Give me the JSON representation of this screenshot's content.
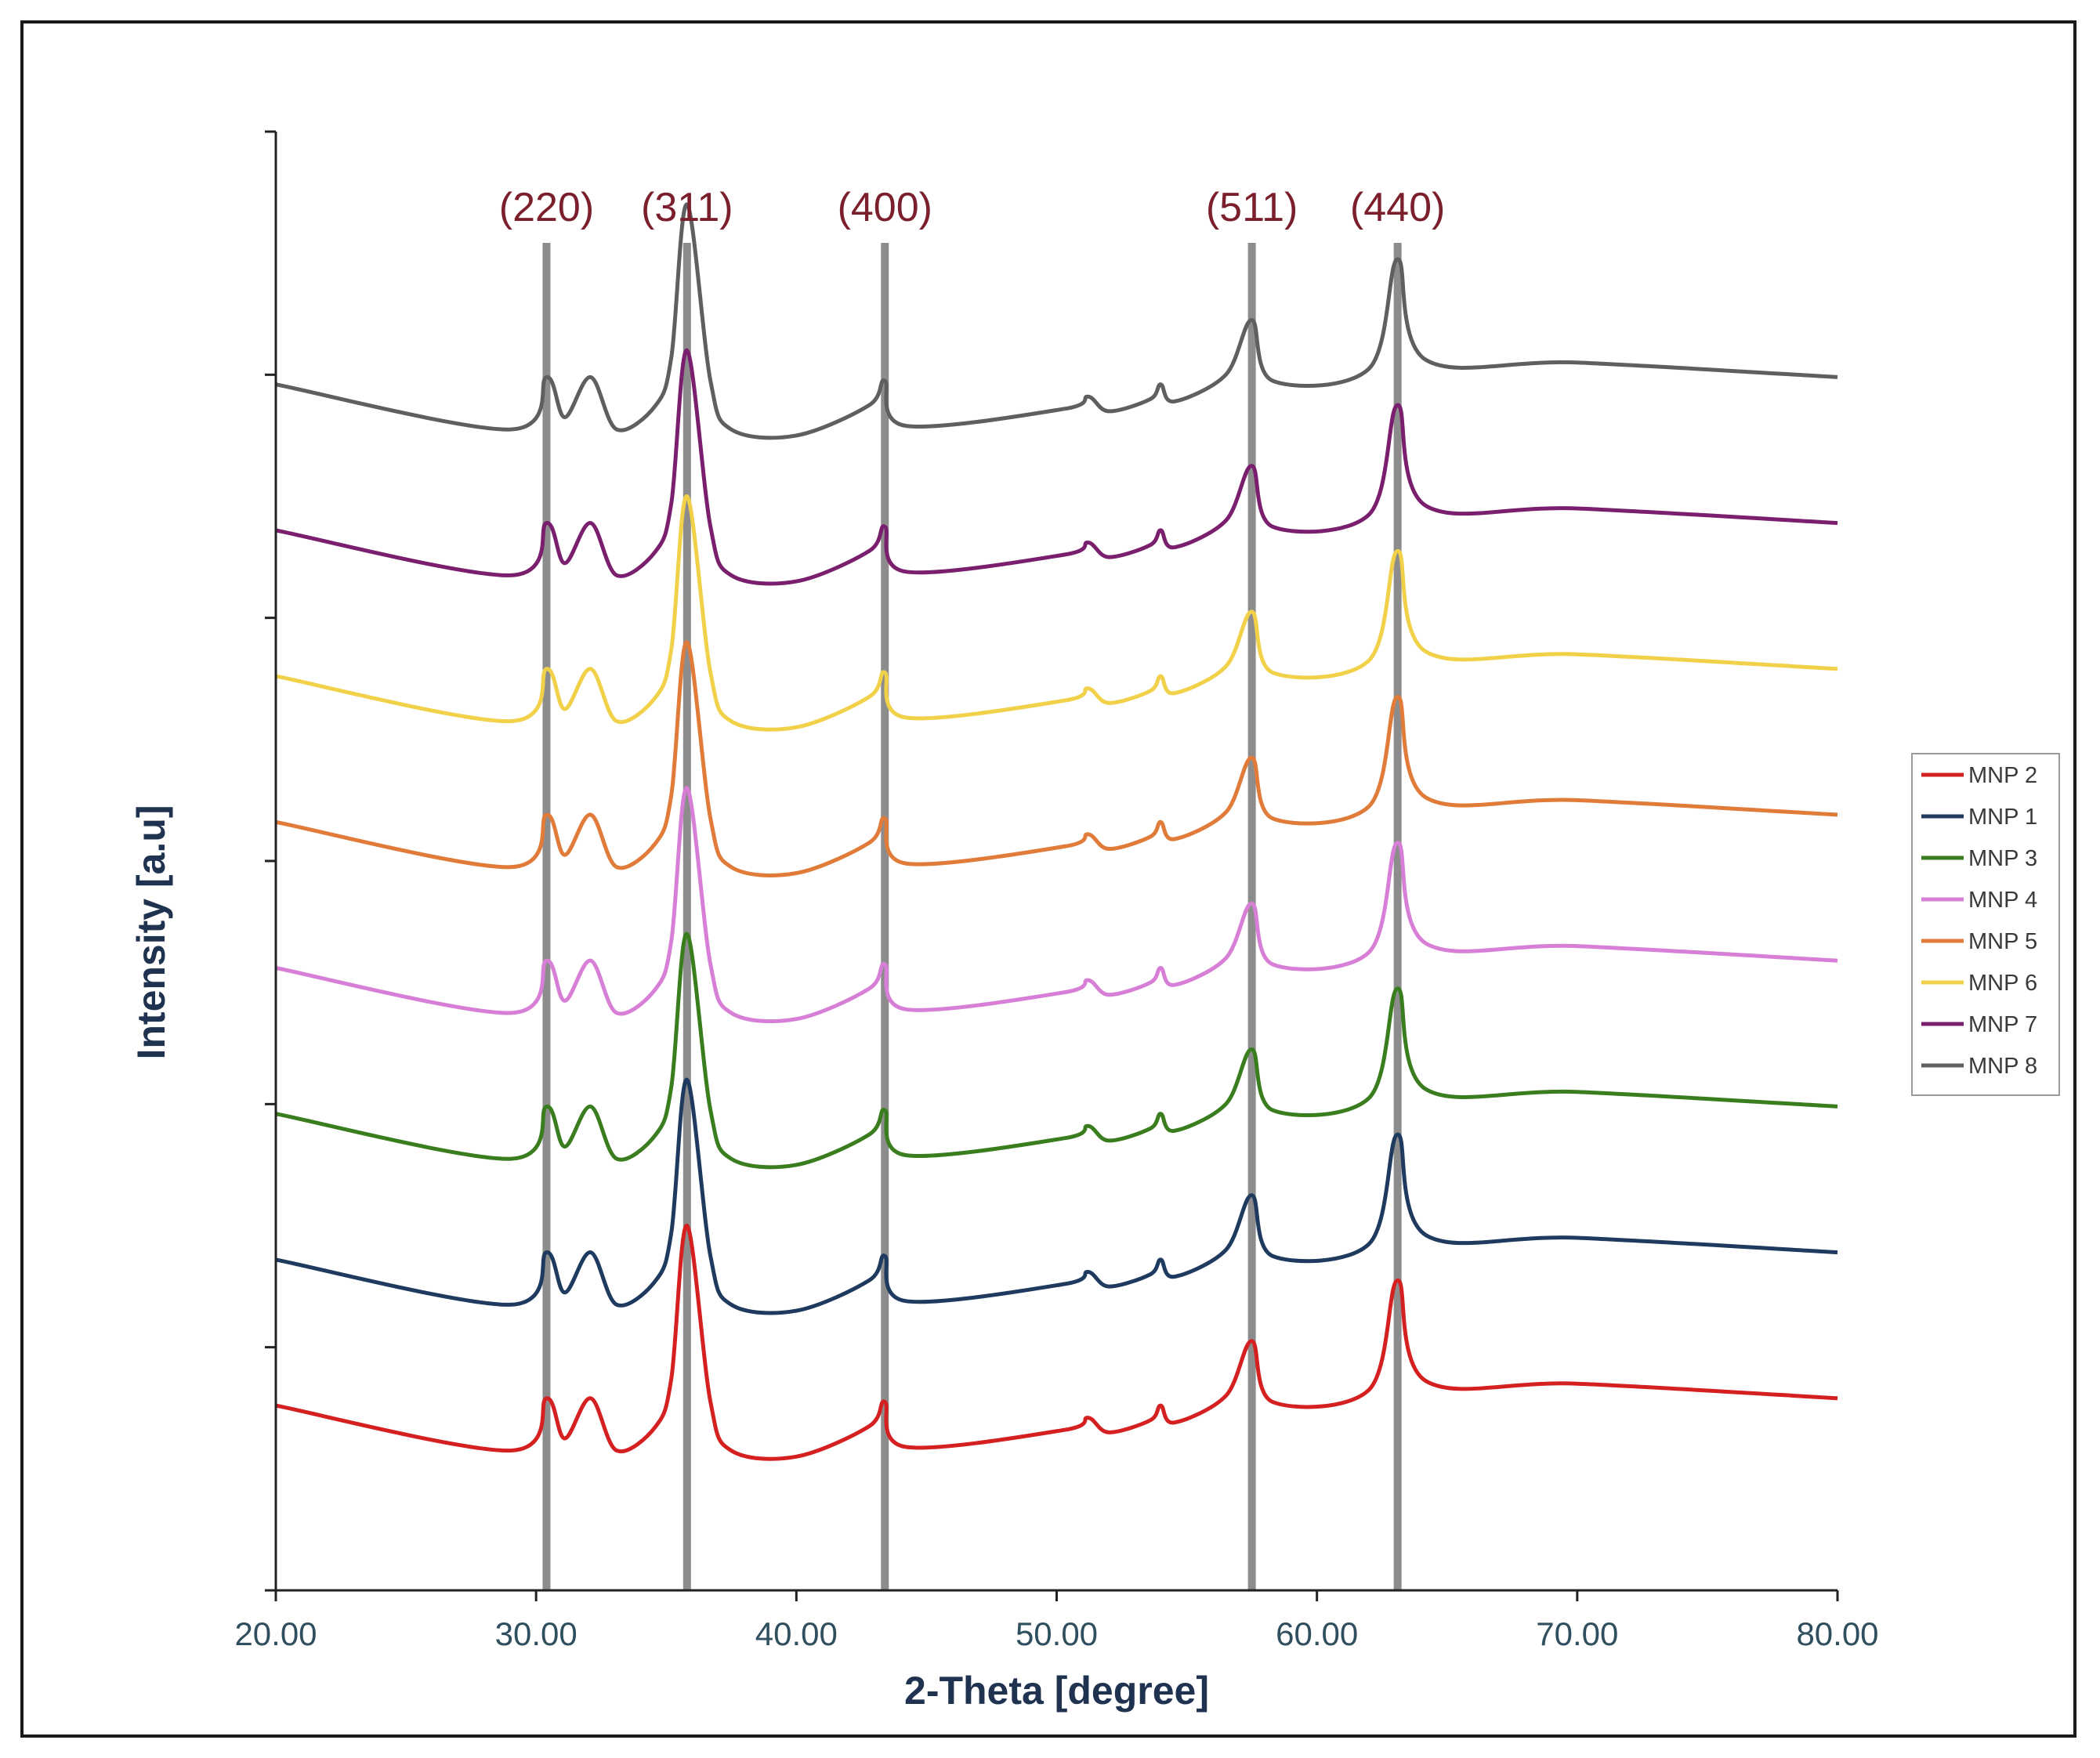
{
  "chart_data": {
    "type": "line",
    "title": "",
    "xlabel": "2-Theta [degree]",
    "ylabel": "Intensity [a.u]",
    "xlim": [
      20,
      80
    ],
    "x_ticks": [
      "20.00",
      "30.00",
      "40.00",
      "50.00",
      "60.00",
      "70.00",
      "80.00"
    ],
    "x_tick_values": [
      20,
      30,
      40,
      50,
      60,
      70,
      80
    ],
    "ylim": [
      0,
      12
    ],
    "y_tick_values": [
      0,
      2,
      4,
      6,
      8,
      10,
      12
    ],
    "y_tick_labels_shown": false,
    "grid": false,
    "legend_position": "right",
    "reference_lines": [
      {
        "label": "(220)",
        "x": 30.4
      },
      {
        "label": "(311)",
        "x": 35.8
      },
      {
        "label": "(400)",
        "x": 43.4
      },
      {
        "label": "(511)",
        "x": 57.5
      },
      {
        "label": "(440)",
        "x": 63.1
      }
    ],
    "profile_points": {
      "x": [
        20,
        29,
        30.4,
        31.1,
        32.1,
        33.1,
        34.6,
        35.2,
        35.8,
        36.7,
        37.5,
        40,
        42.8,
        43.4,
        44.2,
        50.3,
        51.2,
        52,
        53.6,
        54,
        54.5,
        56.5,
        57.5,
        58.3,
        62,
        63.1,
        64.2,
        70,
        80
      ],
      "rel": [
        0.42,
        0.05,
        0.48,
        0.15,
        0.48,
        0.05,
        0.25,
        0.65,
        1.9,
        0.45,
        0.05,
        0.0,
        0.25,
        0.45,
        0.08,
        0.22,
        0.32,
        0.2,
        0.3,
        0.42,
        0.28,
        0.5,
        0.95,
        0.45,
        0.55,
        1.45,
        0.62,
        0.6,
        0.48
      ]
    },
    "series": [
      {
        "name": "MNP 2",
        "color": "#d42020",
        "baseline": 1.1,
        "scale": 1.0
      },
      {
        "name": "MNP 1",
        "color": "#1f3a5f",
        "baseline": 2.3,
        "scale": 1.0
      },
      {
        "name": "MNP 3",
        "color": "#3a7d1e",
        "baseline": 3.5,
        "scale": 1.0
      },
      {
        "name": "MNP 4",
        "color": "#d77fd6",
        "baseline": 4.7,
        "scale": 1.0
      },
      {
        "name": "MNP 5",
        "color": "#e07b3a",
        "baseline": 5.9,
        "scale": 1.0
      },
      {
        "name": "MNP 6",
        "color": "#f2d14a",
        "baseline": 7.1,
        "scale": 1.0
      },
      {
        "name": "MNP 7",
        "color": "#7a1f6e",
        "baseline": 8.3,
        "scale": 1.0
      },
      {
        "name": "MNP 8",
        "color": "#5f5f5f",
        "baseline": 9.5,
        "scale": 1.0
      }
    ]
  }
}
